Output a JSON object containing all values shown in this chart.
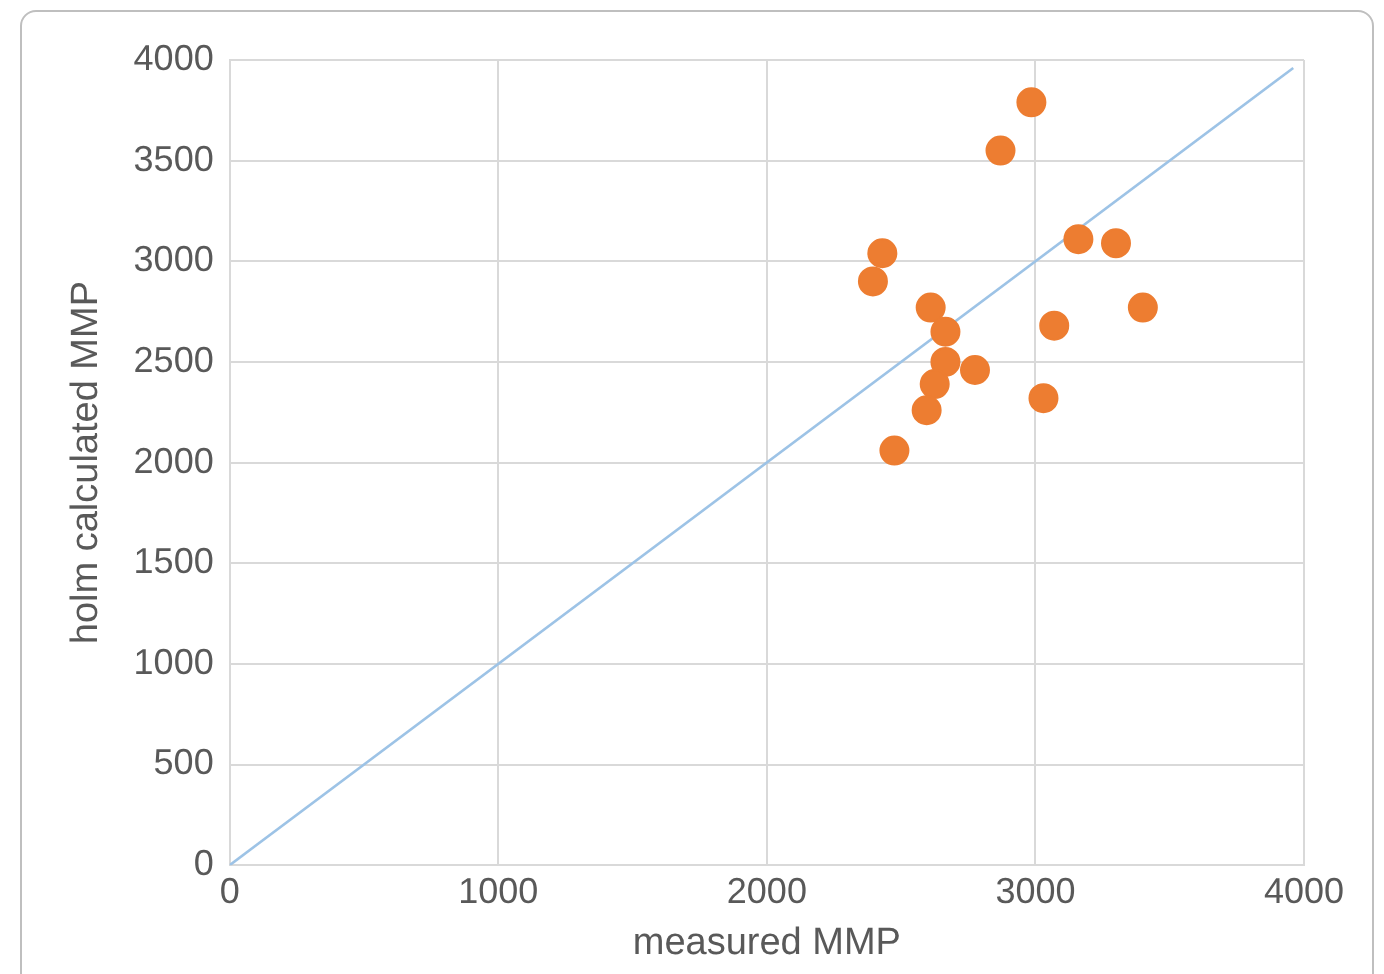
{
  "chart_data": {
    "type": "scatter",
    "xlabel": "measured MMP",
    "ylabel": "holm calculated MMP",
    "xlim": [
      0,
      4000
    ],
    "xticks": [
      0,
      1000,
      2000,
      3000,
      4000
    ],
    "ylim": [
      0,
      4000
    ],
    "yticks": [
      0,
      500,
      1000,
      1500,
      2000,
      2500,
      3000,
      3500,
      4000
    ],
    "grid": true,
    "legend": false,
    "marker": "circle",
    "series": [
      {
        "color": "#ed7d31",
        "x": [
          2985,
          2870,
          2430,
          2395,
          3160,
          3300,
          2610,
          2665,
          3400,
          3070,
          2665,
          2775,
          2625,
          3030,
          2595,
          2475
        ],
        "values": [
          3790,
          3550,
          3040,
          2900,
          3110,
          3090,
          2770,
          2650,
          2770,
          2680,
          2500,
          2460,
          2390,
          2320,
          2260,
          2060
        ]
      },
      {
        "type": "line",
        "color": "#9dc3e6",
        "marker": "none",
        "x": [
          0,
          3960
        ],
        "values": [
          0,
          3960
        ]
      }
    ]
  }
}
